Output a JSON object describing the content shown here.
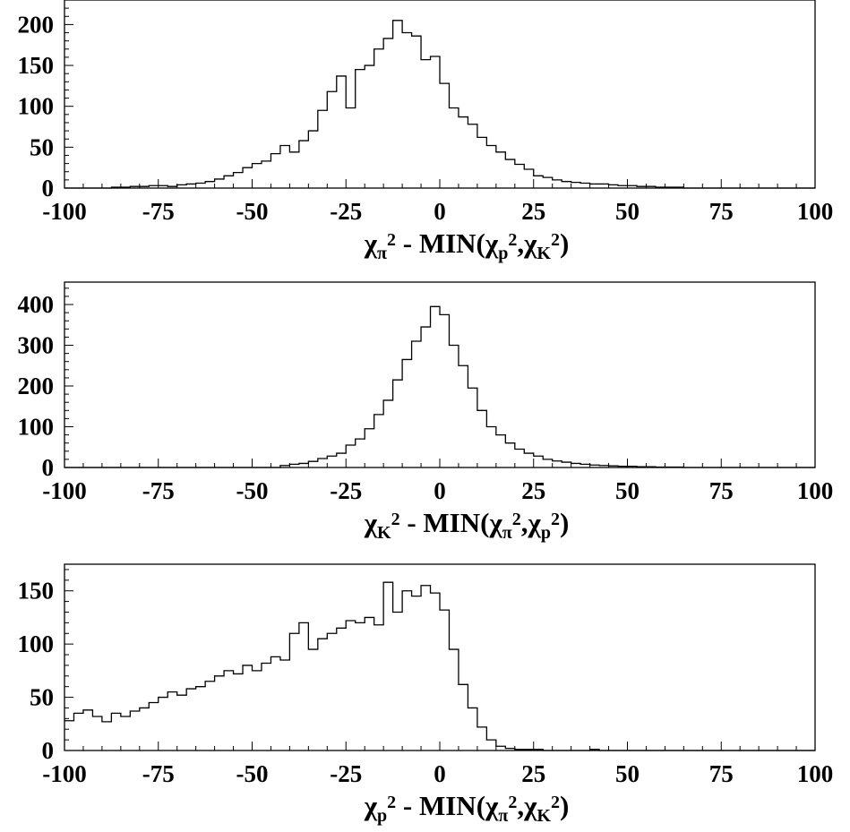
{
  "chart_data": [
    {
      "type": "histogram",
      "xlim": [
        -100,
        100
      ],
      "ylim": [
        0,
        230
      ],
      "bin_width": 2.5,
      "x_ticks": [
        -100,
        -75,
        -50,
        -25,
        0,
        25,
        50,
        75,
        100
      ],
      "x_tick_labels": [
        "-100",
        "-75",
        "-50",
        "-25",
        "0",
        "25",
        "50",
        "75",
        "100"
      ],
      "y_ticks": [
        0,
        50,
        100,
        150,
        200
      ],
      "y_tick_labels": [
        "0",
        "50",
        "100",
        "150",
        "200"
      ],
      "xlabel": {
        "main": "χ",
        "sub": "π",
        "sup": "2",
        "rest": " - MIN(",
        "a_main": "χ",
        "a_sub": "p",
        "a_sup": "2",
        "sep": ",",
        "b_main": "χ",
        "b_sub": "K",
        "b_sup": "2",
        "close": ")"
      },
      "values": [
        0,
        0,
        0,
        0,
        0,
        1,
        1,
        2,
        2,
        3,
        3,
        2,
        4,
        5,
        6,
        8,
        11,
        15,
        19,
        25,
        30,
        33,
        42,
        52,
        44,
        58,
        70,
        95,
        118,
        137,
        98,
        145,
        150,
        170,
        183,
        205,
        190,
        186,
        157,
        161,
        128,
        98,
        87,
        78,
        62,
        52,
        44,
        35,
        29,
        23,
        15,
        13,
        10,
        8,
        7,
        6,
        5,
        5,
        4,
        3,
        3,
        2,
        2,
        1,
        1,
        1,
        0,
        0,
        0,
        0,
        0,
        0,
        0,
        0,
        0,
        0,
        0,
        0,
        0,
        0
      ]
    },
    {
      "type": "histogram",
      "xlim": [
        -100,
        100
      ],
      "ylim": [
        0,
        455
      ],
      "bin_width": 2.5,
      "x_ticks": [
        -100,
        -75,
        -50,
        -25,
        0,
        25,
        50,
        75,
        100
      ],
      "x_tick_labels": [
        "-100",
        "-75",
        "-50",
        "-25",
        "0",
        "25",
        "50",
        "75",
        "100"
      ],
      "y_ticks": [
        0,
        100,
        200,
        300,
        400
      ],
      "y_tick_labels": [
        "0",
        "100",
        "200",
        "300",
        "400"
      ],
      "xlabel": {
        "main": "χ",
        "sub": "K",
        "sup": "2",
        "rest": " - MIN(",
        "a_main": "χ",
        "a_sub": "π",
        "a_sup": "2",
        "sep": ",",
        "b_main": "χ",
        "b_sub": "p",
        "b_sup": "2",
        "close": ")"
      },
      "values": [
        0,
        0,
        0,
        0,
        0,
        0,
        0,
        0,
        0,
        0,
        0,
        0,
        0,
        0,
        0,
        0,
        0,
        0,
        0,
        0,
        0,
        0,
        0,
        5,
        8,
        10,
        15,
        22,
        28,
        35,
        55,
        70,
        95,
        130,
        165,
        215,
        265,
        310,
        345,
        395,
        375,
        300,
        250,
        195,
        140,
        100,
        80,
        60,
        45,
        35,
        28,
        20,
        16,
        13,
        10,
        8,
        6,
        5,
        4,
        3,
        3,
        2,
        2,
        1,
        1,
        1,
        0,
        0,
        0,
        0,
        0,
        0,
        0,
        0,
        0,
        0,
        0,
        0,
        0,
        0
      ]
    },
    {
      "type": "histogram",
      "xlim": [
        -100,
        100
      ],
      "ylim": [
        0,
        175
      ],
      "bin_width": 2.5,
      "x_ticks": [
        -100,
        -75,
        -50,
        -25,
        0,
        25,
        50,
        75,
        100
      ],
      "x_tick_labels": [
        "-100",
        "-75",
        "-50",
        "-25",
        "0",
        "25",
        "50",
        "75",
        "100"
      ],
      "y_ticks": [
        0,
        50,
        100,
        150
      ],
      "y_tick_labels": [
        "0",
        "50",
        "100",
        "150"
      ],
      "xlabel": {
        "main": "χ",
        "sub": "p",
        "sup": "2",
        "rest": " - MIN(",
        "a_main": "χ",
        "a_sub": "π",
        "a_sup": "2",
        "sep": ",",
        "b_main": "χ",
        "b_sub": "K",
        "b_sup": "2",
        "close": ")"
      },
      "values": [
        28,
        35,
        38,
        32,
        27,
        35,
        32,
        37,
        40,
        45,
        50,
        55,
        52,
        58,
        60,
        65,
        70,
        75,
        72,
        80,
        75,
        82,
        88,
        85,
        110,
        120,
        95,
        105,
        110,
        115,
        122,
        120,
        125,
        118,
        158,
        130,
        150,
        145,
        155,
        148,
        132,
        95,
        62,
        40,
        22,
        10,
        4,
        2,
        1,
        1,
        1,
        0,
        0,
        0,
        0,
        0,
        1,
        0,
        0,
        0,
        0,
        0,
        0,
        0,
        0,
        0,
        0,
        0,
        0,
        0,
        0,
        0,
        0,
        0,
        0,
        0,
        0,
        0,
        0,
        0
      ]
    }
  ]
}
